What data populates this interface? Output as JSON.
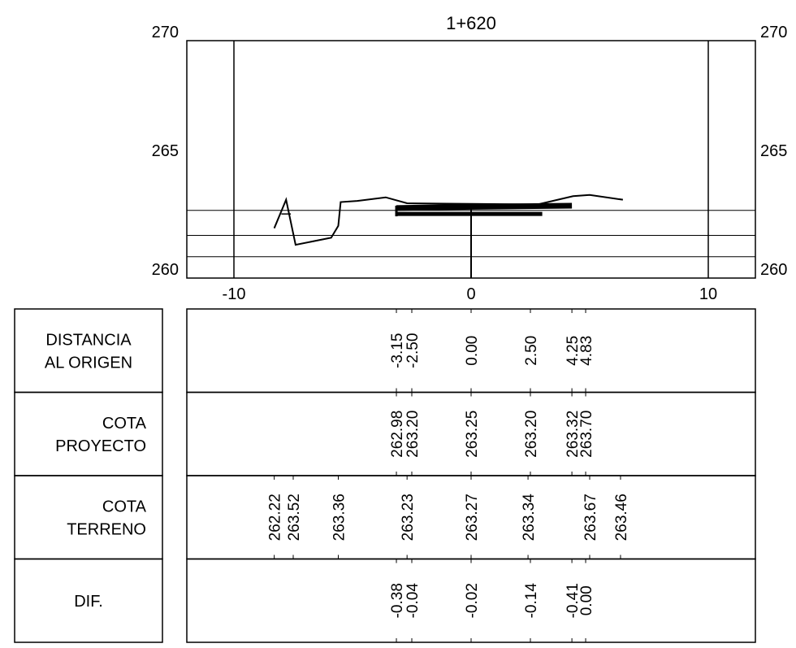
{
  "title": "1+620",
  "y_axis": {
    "ticks": [
      "270",
      "265",
      "260"
    ],
    "values": [
      270,
      265,
      260
    ]
  },
  "x_axis": {
    "ticks": [
      "-10",
      "0",
      "10"
    ],
    "values": [
      -10,
      0,
      10
    ]
  },
  "rows": [
    {
      "label_lines": [
        "DISTANCIA",
        "AL ORIGEN"
      ],
      "align": "center",
      "entries": [
        {
          "x": -3.15,
          "text": "-3.15"
        },
        {
          "x": -2.5,
          "text": "-2.50"
        },
        {
          "x": 0.0,
          "text": "0.00"
        },
        {
          "x": 2.5,
          "text": "2.50"
        },
        {
          "x": 4.25,
          "text": "4.25"
        },
        {
          "x": 4.83,
          "text": "4.83"
        }
      ]
    },
    {
      "label_lines": [
        "COTA",
        "PROYECTO"
      ],
      "align": "right",
      "entries": [
        {
          "x": -3.15,
          "text": "262.98"
        },
        {
          "x": -2.5,
          "text": "263.20"
        },
        {
          "x": 0.0,
          "text": "263.25"
        },
        {
          "x": 2.5,
          "text": "263.20"
        },
        {
          "x": 4.25,
          "text": "263.32"
        },
        {
          "x": 4.83,
          "text": "263.70"
        }
      ]
    },
    {
      "label_lines": [
        "COTA",
        "TERRENO"
      ],
      "align": "right",
      "entries": [
        {
          "x": -8.3,
          "text": "262.22"
        },
        {
          "x": -7.5,
          "text": "263.52"
        },
        {
          "x": -5.6,
          "text": "263.36"
        },
        {
          "x": -2.7,
          "text": "263.23"
        },
        {
          "x": 0.0,
          "text": "263.27"
        },
        {
          "x": 2.4,
          "text": "263.34"
        },
        {
          "x": 5.0,
          "text": "263.67"
        },
        {
          "x": 6.3,
          "text": "263.46"
        }
      ]
    },
    {
      "label_lines": [
        "DIF."
      ],
      "align": "center",
      "entries": [
        {
          "x": -3.15,
          "text": "-0.38"
        },
        {
          "x": -2.5,
          "text": "-0.04"
        },
        {
          "x": 0.0,
          "text": "-0.02"
        },
        {
          "x": 2.5,
          "text": "-0.14"
        },
        {
          "x": 4.25,
          "text": "-0.41"
        },
        {
          "x": 4.83,
          "text": "0.00"
        }
      ]
    }
  ],
  "terrain_profile": [
    {
      "x": -8.3,
      "y": 262.1
    },
    {
      "x": -7.8,
      "y": 263.3
    },
    {
      "x": -7.4,
      "y": 261.4
    },
    {
      "x": -5.9,
      "y": 261.7
    },
    {
      "x": -5.6,
      "y": 262.2
    },
    {
      "x": -5.5,
      "y": 263.2
    },
    {
      "x": -4.8,
      "y": 263.25
    },
    {
      "x": -3.6,
      "y": 263.4
    },
    {
      "x": -2.7,
      "y": 263.15
    },
    {
      "x": 2.8,
      "y": 263.1
    },
    {
      "x": 4.3,
      "y": 263.45
    },
    {
      "x": 5.0,
      "y": 263.5
    },
    {
      "x": 6.4,
      "y": 263.3
    }
  ],
  "terrain_peak": [
    {
      "x": -8.0,
      "y": 262.7
    },
    {
      "x": -7.6,
      "y": 262.7
    }
  ],
  "design_section": {
    "top": [
      {
        "x": -3.15,
        "y": 262.95
      },
      {
        "x": 0.0,
        "y": 263.0
      },
      {
        "x": 4.25,
        "y": 263.05
      }
    ],
    "bottom": [
      {
        "x": -3.15,
        "y": 262.7
      },
      {
        "x": 3.0,
        "y": 262.7
      }
    ]
  },
  "horizontal_refs": [
    262.85,
    261.8,
    260.9
  ],
  "vertical_refs": [
    -10,
    10
  ]
}
